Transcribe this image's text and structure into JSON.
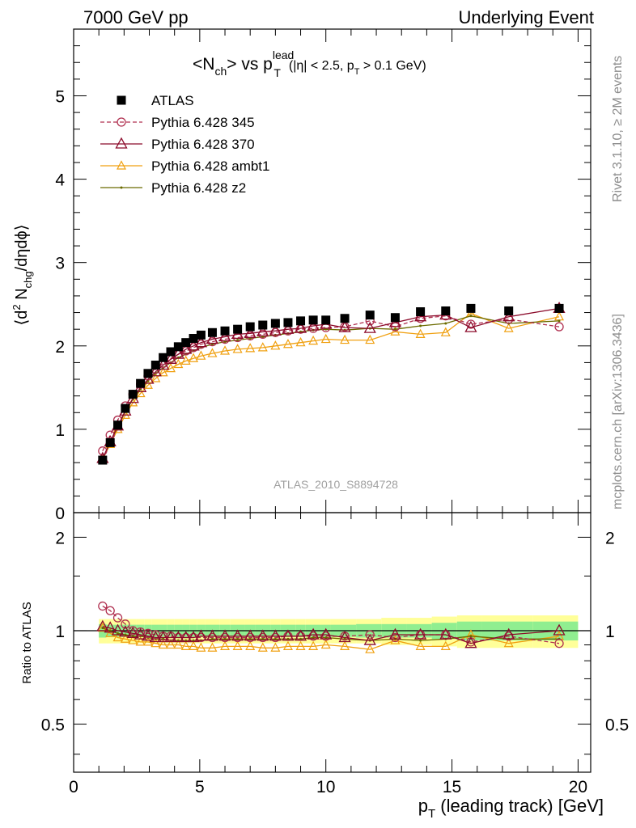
{
  "header": {
    "left": "7000 GeV pp",
    "right": "Underlying Event"
  },
  "title": {
    "pre": "<N",
    "sub1": "ch",
    "mid": "> vs p",
    "sup2": "lead",
    "sub2": "T",
    "cut_a": "(|η| < 2.5, p",
    "cut_sub": "T",
    "cut_b": " > 0.1 GeV)"
  },
  "side_labels": {
    "rivet": "Rivet 3.1.10, ≥ 2M events",
    "mcplots": "mcplots.cern.ch [arXiv:1306.3436]"
  },
  "analysis_id": "ATLAS_2010_S8894728",
  "axes": {
    "ylabel_main": "⟨d² N_chg/dηdϕ⟩",
    "ylabel_main_parts": {
      "a": "⟨d",
      "sup": "2",
      "b": " N",
      "sub": "chg",
      "c": "/dηdϕ⟩"
    },
    "ylabel_ratio": "Ratio to ATLAS",
    "xlabel": "p_T (leading track) [GeV]",
    "xlabel_parts": {
      "a": "p",
      "sub": "T",
      "b": " (leading track) [GeV]"
    },
    "x_ticks": [
      "0",
      "5",
      "10",
      "15",
      "20"
    ],
    "y_ticks_main": [
      "0",
      "1",
      "2",
      "3",
      "4",
      "5"
    ],
    "y_ticks_ratio": [
      "0.5",
      "1",
      "2"
    ]
  },
  "colors": {
    "data": "#000000",
    "p345": "#b03050",
    "p370": "#8b0a2a",
    "ambt1": "#f0a010",
    "z2": "#6b6b00",
    "band_outer": "#ffff99",
    "band_inner": "#90ee90"
  },
  "chart_data": {
    "type": "scatter",
    "xlim": [
      0,
      20.5
    ],
    "ylim_main": [
      0,
      5.8
    ],
    "ylim_ratio": [
      0.35,
      2.4
    ],
    "ratio_log": true,
    "x": [
      1.15,
      1.45,
      1.75,
      2.05,
      2.35,
      2.65,
      2.95,
      3.25,
      3.55,
      3.85,
      4.15,
      4.45,
      4.75,
      5.05,
      5.5,
      6.0,
      6.5,
      7.0,
      7.5,
      8.0,
      8.5,
      9.0,
      9.5,
      10.0,
      10.75,
      11.75,
      12.75,
      13.75,
      14.75,
      15.75,
      17.25,
      19.25
    ],
    "series": [
      {
        "key": "atlas",
        "name": "ATLAS",
        "marker": "square",
        "y": [
          0.63,
          0.84,
          1.05,
          1.25,
          1.42,
          1.55,
          1.67,
          1.77,
          1.86,
          1.93,
          1.99,
          2.04,
          2.09,
          2.13,
          2.16,
          2.18,
          2.2,
          2.23,
          2.25,
          2.27,
          2.28,
          2.3,
          2.31,
          2.31,
          2.33,
          2.37,
          2.34,
          2.41,
          2.42,
          2.45,
          2.42,
          2.45
        ],
        "ratio": [
          1,
          1,
          1,
          1,
          1,
          1,
          1,
          1,
          1,
          1,
          1,
          1,
          1,
          1,
          1,
          1,
          1,
          1,
          1,
          1,
          1,
          1,
          1,
          1,
          1,
          1,
          1,
          1,
          1,
          1,
          1,
          1
        ]
      },
      {
        "key": "p345",
        "name": "Pythia 6.428 345",
        "marker": "circle",
        "dashed": true,
        "y": [
          0.74,
          0.93,
          1.11,
          1.28,
          1.42,
          1.54,
          1.64,
          1.72,
          1.79,
          1.85,
          1.9,
          1.94,
          1.98,
          2.02,
          2.05,
          2.08,
          2.1,
          2.12,
          2.14,
          2.16,
          2.18,
          2.2,
          2.21,
          2.22,
          2.23,
          2.3,
          2.23,
          2.33,
          2.36,
          2.26,
          2.32,
          2.23
        ],
        "ratio": [
          1.2,
          1.16,
          1.1,
          1.05,
          1.0,
          0.99,
          0.98,
          0.97,
          0.96,
          0.96,
          0.95,
          0.95,
          0.95,
          0.95,
          0.95,
          0.95,
          0.95,
          0.95,
          0.95,
          0.95,
          0.96,
          0.96,
          0.96,
          0.96,
          0.96,
          0.97,
          0.95,
          0.97,
          0.97,
          0.92,
          0.96,
          0.91
        ]
      },
      {
        "key": "p370",
        "name": "Pythia 6.428 370",
        "marker": "triangle",
        "y": [
          0.65,
          0.85,
          1.04,
          1.22,
          1.37,
          1.5,
          1.6,
          1.69,
          1.77,
          1.84,
          1.9,
          1.96,
          2.0,
          2.04,
          2.08,
          2.11,
          2.14,
          2.15,
          2.17,
          2.18,
          2.2,
          2.21,
          2.24,
          2.26,
          2.22,
          2.21,
          2.28,
          2.35,
          2.37,
          2.22,
          2.35,
          2.45
        ],
        "ratio": [
          1.03,
          1.02,
          1.0,
          0.99,
          0.98,
          0.97,
          0.96,
          0.95,
          0.95,
          0.95,
          0.95,
          0.95,
          0.95,
          0.96,
          0.96,
          0.96,
          0.96,
          0.96,
          0.96,
          0.96,
          0.96,
          0.96,
          0.97,
          0.97,
          0.95,
          0.93,
          0.97,
          0.97,
          0.97,
          0.91,
          0.97,
          1.0
        ]
      },
      {
        "key": "ambt1",
        "name": "Pythia 6.428 ambt1",
        "marker": "triangle-small",
        "y": [
          0.64,
          0.82,
          1.0,
          1.17,
          1.32,
          1.43,
          1.53,
          1.61,
          1.68,
          1.73,
          1.78,
          1.82,
          1.85,
          1.88,
          1.91,
          1.94,
          1.96,
          1.97,
          1.98,
          2.0,
          2.02,
          2.04,
          2.06,
          2.08,
          2.07,
          2.07,
          2.17,
          2.14,
          2.16,
          2.39,
          2.21,
          2.35
        ],
        "ratio": [
          1.02,
          0.98,
          0.95,
          0.94,
          0.93,
          0.92,
          0.92,
          0.91,
          0.9,
          0.9,
          0.9,
          0.89,
          0.89,
          0.88,
          0.88,
          0.89,
          0.89,
          0.89,
          0.88,
          0.88,
          0.89,
          0.89,
          0.89,
          0.9,
          0.89,
          0.87,
          0.93,
          0.89,
          0.89,
          0.97,
          0.91,
          0.96
        ]
      },
      {
        "key": "z2",
        "name": "Pythia 6.428 z2",
        "marker": "dot",
        "y": [
          0.64,
          0.84,
          1.03,
          1.21,
          1.36,
          1.48,
          1.58,
          1.67,
          1.74,
          1.8,
          1.86,
          1.9,
          1.94,
          1.98,
          2.02,
          2.05,
          2.07,
          2.09,
          2.11,
          2.13,
          2.15,
          2.17,
          2.19,
          2.2,
          2.19,
          2.21,
          2.2,
          2.24,
          2.27,
          2.36,
          2.27,
          2.3
        ],
        "ratio": [
          1.02,
          1.0,
          0.98,
          0.97,
          0.96,
          0.96,
          0.95,
          0.94,
          0.94,
          0.93,
          0.93,
          0.93,
          0.93,
          0.93,
          0.94,
          0.94,
          0.94,
          0.94,
          0.94,
          0.94,
          0.94,
          0.94,
          0.95,
          0.95,
          0.94,
          0.93,
          0.94,
          0.93,
          0.94,
          0.96,
          0.94,
          0.94
        ]
      }
    ],
    "band_edges": [
      1.0,
      1.3,
      1.6,
      1.9,
      2.2,
      2.5,
      2.8,
      3.1,
      3.4,
      3.7,
      4.0,
      4.3,
      4.6,
      4.9,
      5.2,
      5.8,
      6.2,
      6.8,
      7.2,
      7.8,
      8.2,
      8.8,
      9.2,
      9.8,
      10.2,
      11.2,
      12.2,
      13.2,
      14.2,
      15.2,
      16.2,
      18.2,
      20.0
    ],
    "band_inner_halfwidth": [
      0.05,
      0.045,
      0.045,
      0.045,
      0.045,
      0.045,
      0.045,
      0.045,
      0.045,
      0.045,
      0.045,
      0.045,
      0.045,
      0.045,
      0.045,
      0.045,
      0.045,
      0.045,
      0.045,
      0.045,
      0.045,
      0.045,
      0.045,
      0.045,
      0.045,
      0.05,
      0.05,
      0.05,
      0.06,
      0.07,
      0.07,
      0.07
    ],
    "band_outer_halfwidth": [
      0.09,
      0.09,
      0.09,
      0.09,
      0.09,
      0.09,
      0.09,
      0.09,
      0.09,
      0.09,
      0.09,
      0.09,
      0.09,
      0.09,
      0.09,
      0.09,
      0.09,
      0.09,
      0.09,
      0.09,
      0.09,
      0.09,
      0.09,
      0.09,
      0.09,
      0.09,
      0.1,
      0.1,
      0.11,
      0.12,
      0.12,
      0.12
    ]
  }
}
